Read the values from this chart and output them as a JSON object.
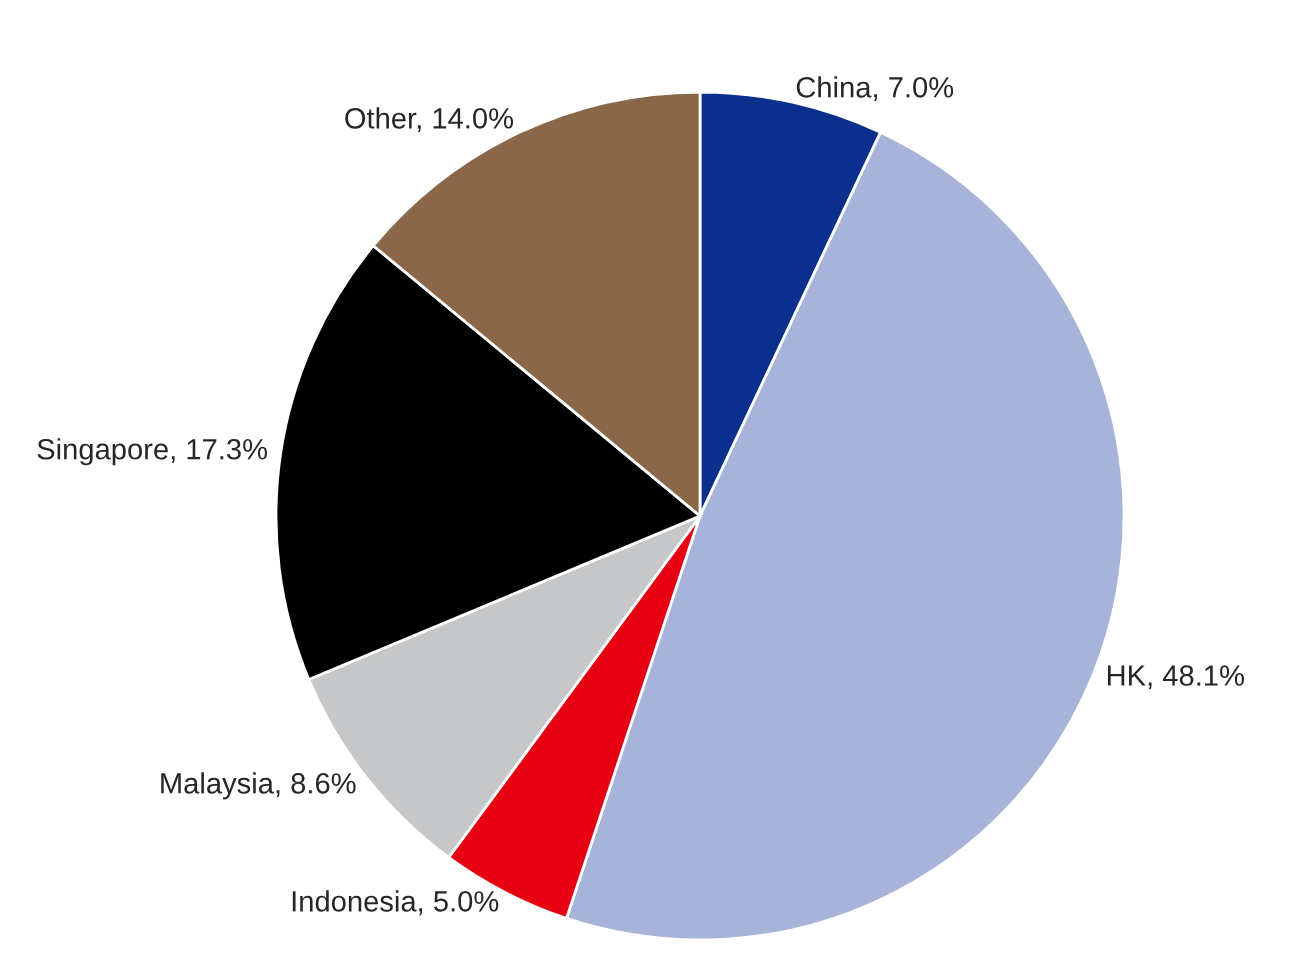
{
  "chart_data": {
    "type": "pie",
    "categories": [
      "China",
      "HK",
      "Indonesia",
      "Malaysia",
      "Singapore",
      "Other"
    ],
    "values": [
      7.0,
      48.1,
      5.0,
      8.6,
      17.3,
      14.0
    ],
    "value_labels": [
      "7.0%",
      "48.1%",
      "5.0%",
      "8.6%",
      "17.3%",
      "14.0%"
    ],
    "colors": [
      "#0a2f8c",
      "#a7b3d9",
      "#e60012",
      "#c6c7c8",
      "#000000",
      "#8a6748"
    ],
    "legend": false
  }
}
